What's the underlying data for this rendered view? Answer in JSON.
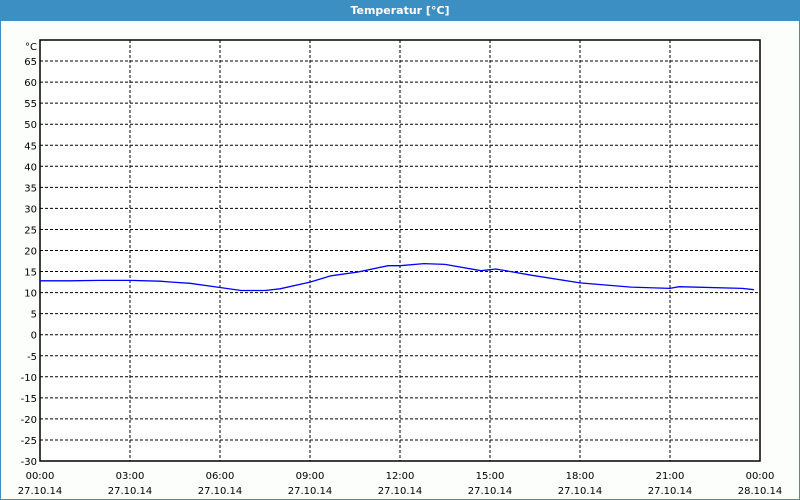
{
  "window": {
    "title": "Temperatur [°C]",
    "title_bar_color": "#3c8fc3"
  },
  "chart_data": {
    "type": "line",
    "title": "Temperatur [°C]",
    "ylabel": "°C",
    "ylim": [
      -30,
      70
    ],
    "yticks": [
      -30,
      -25,
      -20,
      -15,
      -10,
      -5,
      0,
      5,
      10,
      15,
      20,
      25,
      30,
      35,
      40,
      45,
      50,
      55,
      60,
      65
    ],
    "xlim_hours": [
      0,
      24
    ],
    "xticks": [
      {
        "time": "00:00",
        "date": "27.10.14"
      },
      {
        "time": "03:00",
        "date": "27.10.14"
      },
      {
        "time": "06:00",
        "date": "27.10.14"
      },
      {
        "time": "09:00",
        "date": "27.10.14"
      },
      {
        "time": "12:00",
        "date": "27.10.14"
      },
      {
        "time": "15:00",
        "date": "27.10.14"
      },
      {
        "time": "18:00",
        "date": "27.10.14"
      },
      {
        "time": "21:00",
        "date": "27.10.14"
      },
      {
        "time": "00:00",
        "date": "28.10.14"
      }
    ],
    "grid": true,
    "line_color": "#0000ff",
    "series": [
      {
        "x_hours": [
          0,
          1,
          2,
          3,
          4,
          4.4,
          5,
          6,
          6.7,
          7.5,
          8,
          9,
          9.7,
          10.6,
          11.6,
          12,
          12.8,
          13.5,
          14.7,
          15.2,
          16.4,
          18,
          19.7,
          21,
          21.3,
          23.4,
          23.8
        ],
        "values": [
          12.8,
          12.8,
          12.9,
          12.9,
          12.7,
          12.5,
          12.2,
          11.2,
          10.5,
          10.5,
          10.9,
          12.5,
          14.0,
          14.9,
          16.4,
          16.4,
          16.9,
          16.7,
          15.2,
          15.6,
          14.1,
          12.3,
          11.3,
          11.0,
          11.4,
          11.0,
          10.7
        ]
      }
    ]
  }
}
